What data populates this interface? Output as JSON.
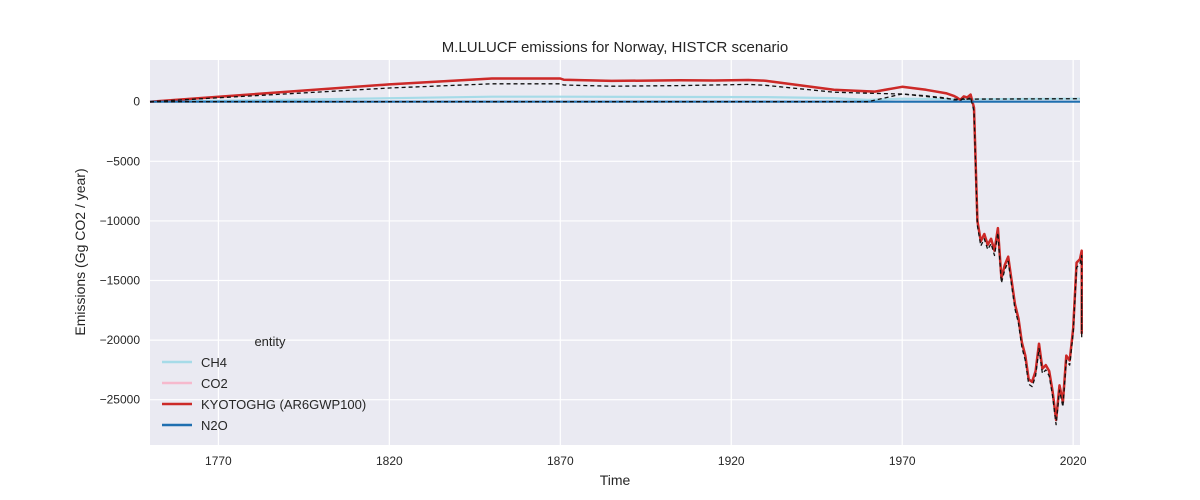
{
  "chart_data": {
    "type": "line",
    "title": "M.LULUCF emissions for Norway, HISTCR scenario",
    "xlabel": "Time",
    "ylabel": "Emissions (Gg CO2 / year)",
    "xlim": [
      1750,
      2022
    ],
    "ylim": [
      -28800,
      3500
    ],
    "xticks": [
      1770,
      1820,
      1870,
      1920,
      1970,
      2020
    ],
    "yticks": [
      0,
      -5000,
      -10000,
      -15000,
      -20000,
      -25000
    ],
    "ytick_labels": [
      "0",
      "−5000",
      "−10000",
      "−15000",
      "−20000",
      "−25000"
    ],
    "grid": true,
    "legend": {
      "title": "entity",
      "position": "lower-left",
      "entries": [
        "CH4",
        "CO2",
        "KYOTOGHG (AR6GWP100)",
        "N2O"
      ]
    },
    "series": [
      {
        "name": "CH4",
        "color": "#a6dbe8",
        "style": "solid",
        "points": [
          [
            1750,
            0
          ],
          [
            1850,
            420
          ],
          [
            1870,
            420
          ],
          [
            1930,
            390
          ],
          [
            1950,
            300
          ],
          [
            1960,
            150
          ],
          [
            1970,
            250
          ],
          [
            1987,
            200
          ],
          [
            2022,
            250
          ]
        ]
      },
      {
        "name": "CO2",
        "color": "#f6b9cd",
        "style": "solid",
        "points": [
          [
            1750,
            0
          ],
          [
            1820,
            1450
          ],
          [
            1850,
            1950
          ],
          [
            1870,
            1950
          ],
          [
            1871,
            1850
          ],
          [
            1885,
            1750
          ],
          [
            1905,
            1800
          ],
          [
            1915,
            1780
          ],
          [
            1925,
            1820
          ],
          [
            1930,
            1760
          ],
          [
            1950,
            1000
          ],
          [
            1962,
            850
          ],
          [
            1970,
            1250
          ],
          [
            1977,
            1000
          ],
          [
            1983,
            700
          ],
          [
            1985,
            500
          ],
          [
            1986,
            350
          ],
          [
            1987,
            150
          ],
          [
            1988,
            450
          ],
          [
            1989,
            350
          ],
          [
            1990,
            600
          ],
          [
            1991,
            -500
          ],
          [
            1992,
            -10000
          ],
          [
            1993,
            -11700
          ],
          [
            1994,
            -11100
          ],
          [
            1995,
            -12000
          ],
          [
            1996,
            -11500
          ],
          [
            1997,
            -12500
          ],
          [
            1998,
            -10600
          ],
          [
            1999,
            -14800
          ],
          [
            2000,
            -13700
          ],
          [
            2001,
            -13000
          ],
          [
            2002,
            -15000
          ],
          [
            2003,
            -17000
          ],
          [
            2004,
            -18200
          ],
          [
            2005,
            -20200
          ],
          [
            2006,
            -21300
          ],
          [
            2007,
            -23300
          ],
          [
            2008,
            -23500
          ],
          [
            2009,
            -22600
          ],
          [
            2010,
            -20300
          ],
          [
            2011,
            -22400
          ],
          [
            2012,
            -22100
          ],
          [
            2013,
            -22600
          ],
          [
            2014,
            -24300
          ],
          [
            2015,
            -26700
          ],
          [
            2016,
            -23800
          ],
          [
            2017,
            -25200
          ],
          [
            2018,
            -21300
          ],
          [
            2019,
            -21700
          ],
          [
            2020,
            -19000
          ],
          [
            2021,
            -13500
          ],
          [
            2022,
            -13200
          ],
          [
            2023,
            -12500
          ],
          [
            2024,
            -13500
          ],
          [
            2025,
            -15400
          ],
          [
            2026,
            -19400
          ],
          [
            2027,
            -15600
          ],
          [
            2028,
            -15800
          ]
        ]
      },
      {
        "name": "KYOTOGHG (AR6GWP100)",
        "color": "#cc2a28",
        "style": "solid",
        "points": [
          [
            1750,
            0
          ],
          [
            1820,
            1450
          ],
          [
            1850,
            1950
          ],
          [
            1870,
            1950
          ],
          [
            1871,
            1850
          ],
          [
            1885,
            1750
          ],
          [
            1905,
            1800
          ],
          [
            1915,
            1780
          ],
          [
            1925,
            1820
          ],
          [
            1930,
            1760
          ],
          [
            1950,
            1000
          ],
          [
            1962,
            850
          ],
          [
            1970,
            1250
          ],
          [
            1977,
            1000
          ],
          [
            1983,
            700
          ],
          [
            1985,
            500
          ],
          [
            1986,
            350
          ],
          [
            1987,
            150
          ],
          [
            1988,
            450
          ],
          [
            1989,
            350
          ],
          [
            1990,
            600
          ],
          [
            1991,
            -500
          ],
          [
            1992,
            -10000
          ],
          [
            1993,
            -11700
          ],
          [
            1994,
            -11100
          ],
          [
            1995,
            -12000
          ],
          [
            1996,
            -11500
          ],
          [
            1997,
            -12500
          ],
          [
            1998,
            -10600
          ],
          [
            1999,
            -14800
          ],
          [
            2000,
            -13700
          ],
          [
            2001,
            -13000
          ],
          [
            2002,
            -15000
          ],
          [
            2003,
            -17000
          ],
          [
            2004,
            -18200
          ],
          [
            2005,
            -20200
          ],
          [
            2006,
            -21300
          ],
          [
            2007,
            -23300
          ],
          [
            2008,
            -23500
          ],
          [
            2009,
            -22600
          ],
          [
            2010,
            -20300
          ],
          [
            2011,
            -22400
          ],
          [
            2012,
            -22100
          ],
          [
            2013,
            -22600
          ],
          [
            2014,
            -24300
          ],
          [
            2015,
            -26700
          ],
          [
            2016,
            -23800
          ],
          [
            2017,
            -25200
          ],
          [
            2018,
            -21300
          ],
          [
            2019,
            -21700
          ],
          [
            2020,
            -19000
          ],
          [
            2021,
            -13500
          ],
          [
            2022,
            -13200
          ],
          [
            2023,
            -12500
          ],
          [
            2024,
            -13500
          ],
          [
            2025,
            -15400
          ],
          [
            2026,
            -19400
          ],
          [
            2027,
            -15600
          ],
          [
            2028,
            -15800
          ]
        ]
      },
      {
        "name": "N2O",
        "color": "#1f6fb0",
        "style": "solid",
        "points": [
          [
            1750,
            0
          ],
          [
            2022,
            0
          ]
        ]
      },
      {
        "name": "KYOTOGHG (AR6GWP100) reference",
        "color": "#111111",
        "style": "dashed",
        "points": [
          [
            1750,
            0
          ],
          [
            1820,
            1150
          ],
          [
            1850,
            1500
          ],
          [
            1870,
            1500
          ],
          [
            1871,
            1400
          ],
          [
            1885,
            1300
          ],
          [
            1905,
            1350
          ],
          [
            1925,
            1450
          ],
          [
            1930,
            1380
          ],
          [
            1950,
            800
          ],
          [
            1962,
            700
          ],
          [
            1970,
            650
          ],
          [
            1977,
            500
          ],
          [
            1983,
            300
          ],
          [
            1985,
            150
          ],
          [
            1986,
            150
          ],
          [
            1987,
            100
          ],
          [
            1988,
            300
          ],
          [
            1989,
            200
          ],
          [
            1990,
            350
          ],
          [
            1991,
            -800
          ],
          [
            1992,
            -10400
          ],
          [
            1993,
            -12100
          ],
          [
            1994,
            -11500
          ],
          [
            1995,
            -12400
          ],
          [
            1996,
            -11900
          ],
          [
            1997,
            -12900
          ],
          [
            1998,
            -11000
          ],
          [
            1999,
            -15200
          ],
          [
            2000,
            -14100
          ],
          [
            2001,
            -13400
          ],
          [
            2002,
            -15400
          ],
          [
            2003,
            -17400
          ],
          [
            2004,
            -18600
          ],
          [
            2005,
            -20600
          ],
          [
            2006,
            -21700
          ],
          [
            2007,
            -23700
          ],
          [
            2008,
            -23900
          ],
          [
            2009,
            -23000
          ],
          [
            2010,
            -20700
          ],
          [
            2011,
            -22800
          ],
          [
            2012,
            -22500
          ],
          [
            2013,
            -23000
          ],
          [
            2014,
            -24700
          ],
          [
            2015,
            -27100
          ],
          [
            2016,
            -24200
          ],
          [
            2017,
            -25600
          ],
          [
            2018,
            -21700
          ],
          [
            2019,
            -22100
          ],
          [
            2020,
            -19400
          ],
          [
            2021,
            -13900
          ],
          [
            2022,
            -13600
          ],
          [
            2023,
            -12900
          ],
          [
            2024,
            -13900
          ],
          [
            2025,
            -15800
          ],
          [
            2026,
            -19800
          ],
          [
            2027,
            -16000
          ],
          [
            2028,
            -16200
          ]
        ]
      },
      {
        "name": "N2O reference",
        "color": "#111111",
        "style": "dashed",
        "points": [
          [
            1750,
            0
          ],
          [
            1960,
            0
          ],
          [
            1970,
            650
          ],
          [
            1985,
            200
          ],
          [
            1991,
            220
          ],
          [
            2022,
            250
          ]
        ]
      }
    ]
  }
}
